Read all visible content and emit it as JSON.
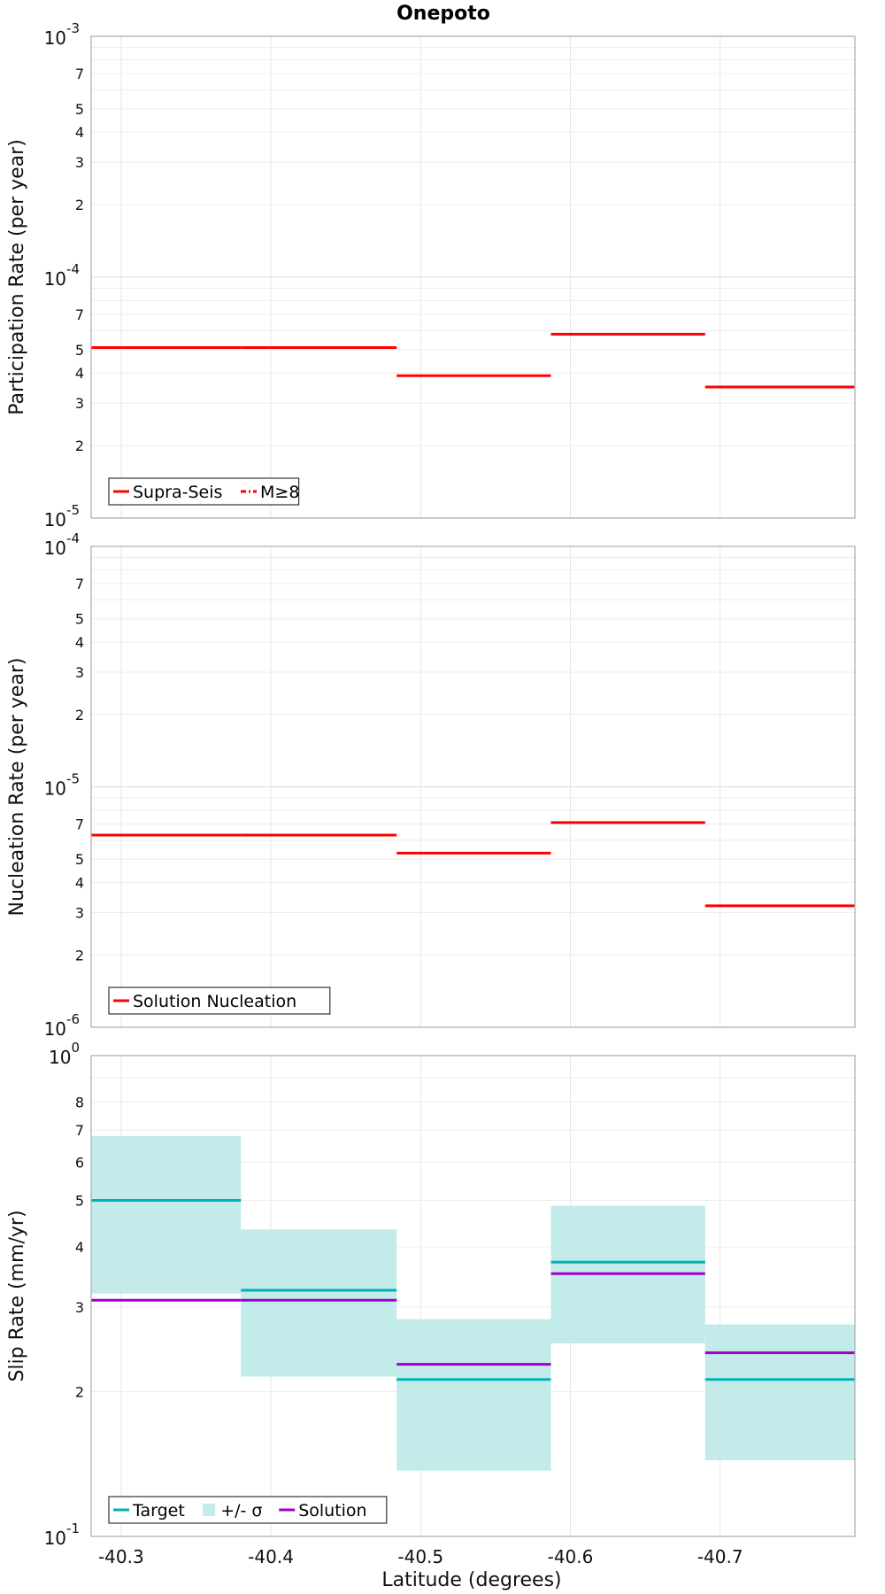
{
  "title": "Onepoto",
  "xlabel": "Latitude (degrees)",
  "xticks": [
    "-40.3",
    "-40.4",
    "-40.5",
    "-40.6",
    "-40.7"
  ],
  "chart_data": [
    {
      "type": "line",
      "ylabel": "Participation Rate (per year)",
      "yscale": "log",
      "xlim": [
        -40.28,
        -40.79
      ],
      "ylim": [
        1e-05,
        0.001
      ],
      "decade_labels": [
        {
          "base": "10",
          "exp": "-5",
          "value": 1e-05
        },
        {
          "base": "10",
          "exp": "-4",
          "value": 0.0001
        },
        {
          "base": "10",
          "exp": "-3",
          "value": 0.001
        }
      ],
      "minor_labels": [
        "2",
        "3",
        "4",
        "5",
        "7"
      ],
      "minor_label_values": [
        2,
        3,
        4,
        5,
        7
      ],
      "grid": true,
      "legend_position": "bottom-left",
      "legend": [
        {
          "label": "Supra-Seis",
          "color": "#ff0000",
          "style": "solid"
        },
        {
          "label": "M≥8",
          "color": "#ff0000",
          "style": "dashdot"
        }
      ],
      "series": [
        {
          "name": "Supra-Seis",
          "color": "#ff0000",
          "segments": [
            {
              "x0": -40.28,
              "x1": -40.38,
              "y": 5.1e-05
            },
            {
              "x0": -40.38,
              "x1": -40.484,
              "y": 5.1e-05
            },
            {
              "x0": -40.484,
              "x1": -40.587,
              "y": 3.9e-05
            },
            {
              "x0": -40.587,
              "x1": -40.69,
              "y": 5.8e-05
            },
            {
              "x0": -40.69,
              "x1": -40.79,
              "y": 3.5e-05
            }
          ]
        }
      ]
    },
    {
      "type": "line",
      "ylabel": "Nucleation Rate (per year)",
      "yscale": "log",
      "xlim": [
        -40.28,
        -40.79
      ],
      "ylim": [
        1e-06,
        0.0001
      ],
      "decade_labels": [
        {
          "base": "10",
          "exp": "-6",
          "value": 1e-06
        },
        {
          "base": "10",
          "exp": "-5",
          "value": 1e-05
        },
        {
          "base": "10",
          "exp": "-4",
          "value": 0.0001
        }
      ],
      "minor_labels": [
        "2",
        "3",
        "4",
        "5",
        "7"
      ],
      "minor_label_values": [
        2,
        3,
        4,
        5,
        7
      ],
      "grid": true,
      "legend_position": "bottom-left",
      "legend": [
        {
          "label": "Solution Nucleation",
          "color": "#ff0000",
          "style": "solid"
        }
      ],
      "series": [
        {
          "name": "Solution Nucleation",
          "color": "#ff0000",
          "segments": [
            {
              "x0": -40.28,
              "x1": -40.38,
              "y": 6.3e-06
            },
            {
              "x0": -40.38,
              "x1": -40.484,
              "y": 6.3e-06
            },
            {
              "x0": -40.484,
              "x1": -40.587,
              "y": 5.3e-06
            },
            {
              "x0": -40.587,
              "x1": -40.69,
              "y": 7.1e-06
            },
            {
              "x0": -40.69,
              "x1": -40.79,
              "y": 3.2e-06
            }
          ]
        }
      ]
    },
    {
      "type": "line",
      "ylabel": "Slip Rate (mm/yr)",
      "yscale": "log",
      "xlim": [
        -40.28,
        -40.79
      ],
      "ylim": [
        0.1,
        1.0
      ],
      "decade_labels": [
        {
          "base": "10",
          "exp": "-1",
          "value": 0.1
        },
        {
          "base": "10",
          "exp": "0",
          "value": 1.0
        }
      ],
      "minor_labels": [
        "2",
        "3",
        "4",
        "5",
        "6",
        "7",
        "8"
      ],
      "minor_label_values": [
        0.2,
        0.3,
        0.4,
        0.5,
        0.6,
        0.7,
        0.8
      ],
      "grid": true,
      "legend_position": "bottom-left",
      "legend": [
        {
          "label": "Target",
          "color": "#00b3b3",
          "style": "solid"
        },
        {
          "label": "+/- σ",
          "color": "#c2ebea",
          "style": "fill"
        },
        {
          "label": "Solution",
          "color": "#a000c8",
          "style": "solid"
        }
      ],
      "bands": [
        {
          "x0": -40.28,
          "x1": -40.38,
          "y0": 0.32,
          "y1": 0.68
        },
        {
          "x0": -40.38,
          "x1": -40.484,
          "y0": 0.215,
          "y1": 0.435
        },
        {
          "x0": -40.484,
          "x1": -40.587,
          "y0": 0.137,
          "y1": 0.283
        },
        {
          "x0": -40.587,
          "x1": -40.69,
          "y0": 0.252,
          "y1": 0.487
        },
        {
          "x0": -40.69,
          "x1": -40.79,
          "y0": 0.144,
          "y1": 0.276
        }
      ],
      "series": [
        {
          "name": "Target",
          "color": "#00b3b3",
          "segments": [
            {
              "x0": -40.28,
              "x1": -40.38,
              "y": 0.5
            },
            {
              "x0": -40.38,
              "x1": -40.484,
              "y": 0.325
            },
            {
              "x0": -40.484,
              "x1": -40.587,
              "y": 0.212
            },
            {
              "x0": -40.587,
              "x1": -40.69,
              "y": 0.372
            },
            {
              "x0": -40.69,
              "x1": -40.79,
              "y": 0.212
            }
          ]
        },
        {
          "name": "Solution",
          "color": "#a000c8",
          "segments": [
            {
              "x0": -40.28,
              "x1": -40.38,
              "y": 0.31
            },
            {
              "x0": -40.38,
              "x1": -40.484,
              "y": 0.31
            },
            {
              "x0": -40.484,
              "x1": -40.587,
              "y": 0.228
            },
            {
              "x0": -40.587,
              "x1": -40.69,
              "y": 0.352
            },
            {
              "x0": -40.69,
              "x1": -40.79,
              "y": 0.241
            }
          ]
        }
      ]
    }
  ]
}
